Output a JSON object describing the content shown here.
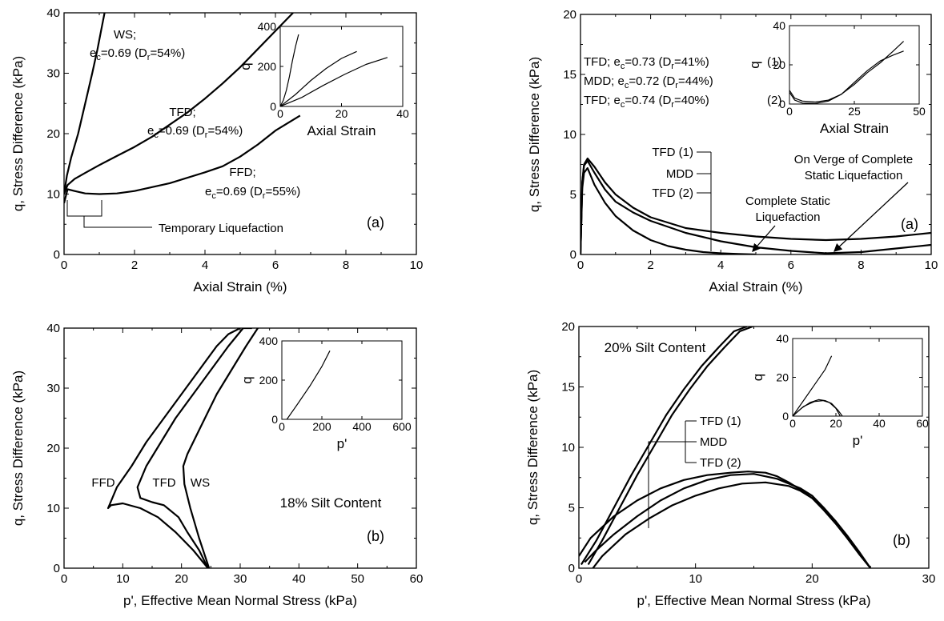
{
  "figure": {
    "background": "#ffffff",
    "ink": "#000000"
  },
  "chart_data": [
    {
      "id": "left-a",
      "type": "line",
      "panel_label": "(a)",
      "xlabel": "Axial Strain (%)",
      "ylabel": "q, Stress Difference (kPa)",
      "xlim": [
        0,
        10
      ],
      "ylim": [
        0,
        40
      ],
      "xticks": [
        "0",
        "2",
        "4",
        "6",
        "8",
        "10"
      ],
      "yticks": [
        "0",
        "10",
        "20",
        "30",
        "40"
      ],
      "series": [
        {
          "name": "WS",
          "x": [
            0,
            0.08,
            0.2,
            0.4,
            0.6,
            0.8,
            0.95,
            1.05,
            1.15
          ],
          "y": [
            10,
            13,
            16,
            20,
            25,
            30,
            34,
            37,
            40
          ]
        },
        {
          "name": "TFD",
          "x": [
            0,
            0.1,
            0.3,
            0.6,
            1,
            1.5,
            2,
            2.5,
            3,
            3.5,
            4,
            4.5,
            5,
            5.5,
            6,
            6.5
          ],
          "y": [
            10,
            11.5,
            12.5,
            13.5,
            14.8,
            16.3,
            17.8,
            19.5,
            21.5,
            23.5,
            25.8,
            28.3,
            31,
            34,
            37,
            40
          ]
        },
        {
          "name": "FFD",
          "x": [
            0,
            0.1,
            0.3,
            0.6,
            1,
            1.5,
            2,
            3,
            4,
            4.5,
            5,
            5.5,
            6,
            6.7
          ],
          "y": [
            8.5,
            10.8,
            10.5,
            10.1,
            10.0,
            10.1,
            10.5,
            11.8,
            13.6,
            14.6,
            16.2,
            18.2,
            20.5,
            23
          ]
        }
      ],
      "curve_labels": [
        {
          "line1": "WS;",
          "line2": "e",
          "sub": "c",
          "rest": "=0.69 (D",
          "sub2": "r",
          "tail": "=54%)"
        },
        {
          "line1": "TFD;",
          "line2": "e",
          "sub": "c",
          "rest": "=0.69 (D",
          "sub2": "r",
          "tail": "=54%)"
        },
        {
          "line1": "FFD;",
          "line2": "e",
          "sub": "c",
          "rest": "=0.69 (D",
          "sub2": "r",
          "tail": "=55%)"
        }
      ],
      "annotation": "Temporary Liquefaction",
      "inset": {
        "xlabel": "Axial Strain",
        "ylabel": "q",
        "xlim": [
          0,
          40
        ],
        "ylim": [
          0,
          400
        ],
        "xticks": [
          "0",
          "20",
          "40"
        ],
        "yticks": [
          "0",
          "200",
          "400"
        ],
        "series": [
          {
            "x": [
              0,
              1,
              2,
              3,
              4,
              5,
              6
            ],
            "y": [
              0,
              30,
              80,
              150,
              230,
              300,
              360
            ]
          },
          {
            "x": [
              0,
              5,
              10,
              15,
              20,
              25
            ],
            "y": [
              0,
              60,
              130,
              190,
              240,
              275
            ]
          },
          {
            "x": [
              0,
              7,
              14,
              21,
              28,
              35
            ],
            "y": [
              0,
              45,
              105,
              160,
              210,
              245
            ]
          }
        ]
      }
    },
    {
      "id": "right-a",
      "type": "line",
      "panel_label": "(a)",
      "xlabel": "Axial Strain (%)",
      "ylabel": "q, Stress Difference (kPa)",
      "xlim": [
        0,
        10
      ],
      "ylim": [
        0,
        20
      ],
      "xticks": [
        "0",
        "2",
        "4",
        "6",
        "8",
        "10"
      ],
      "yticks": [
        "0",
        "5",
        "10",
        "15",
        "20"
      ],
      "series": [
        {
          "name": "TFD (1)",
          "x": [
            0,
            0.05,
            0.1,
            0.2,
            0.4,
            0.7,
            1,
            1.5,
            2,
            3,
            4,
            5,
            6,
            7,
            8,
            9,
            10
          ],
          "y": [
            0,
            6,
            7.5,
            8,
            7.3,
            6,
            5,
            3.9,
            3.1,
            2.2,
            1.8,
            1.5,
            1.3,
            1.2,
            1.3,
            1.5,
            1.8
          ]
        },
        {
          "name": "MDD",
          "x": [
            0,
            0.05,
            0.1,
            0.2,
            0.4,
            0.7,
            1,
            1.5,
            2,
            3,
            4,
            5,
            6,
            7,
            8,
            9,
            10
          ],
          "y": [
            0,
            6,
            7.4,
            7.8,
            6.8,
            5.4,
            4.4,
            3.5,
            2.8,
            1.8,
            1.1,
            0.6,
            0.3,
            0.1,
            0.2,
            0.5,
            0.8
          ]
        },
        {
          "name": "TFD (2)",
          "x": [
            0,
            0.05,
            0.1,
            0.2,
            0.4,
            0.7,
            1,
            1.5,
            2,
            2.5,
            3,
            3.5,
            4,
            4.5,
            5
          ],
          "y": [
            0,
            5.5,
            6.8,
            7.2,
            5.8,
            4.3,
            3.2,
            2,
            1.2,
            0.7,
            0.4,
            0.2,
            0.1,
            0.05,
            0
          ]
        }
      ],
      "legend_items": [
        {
          "name": "TFD;",
          "e": "e",
          "sub": "c",
          "val": "=0.73 (D",
          "sub2": "r",
          "tail": "=41%)",
          "tag": "(1)"
        },
        {
          "name": "MDD;",
          "e": "e",
          "sub": "c",
          "val": "=0.72 (D",
          "sub2": "r",
          "tail": "=44%)",
          "tag": ""
        },
        {
          "name": "TFD;",
          "e": "e",
          "sub": "c",
          "val": "=0.74 (D",
          "sub2": "r",
          "tail": "=40%)",
          "tag": "(2)"
        }
      ],
      "bracket_labels": [
        "TFD (1)",
        "MDD",
        "TFD (2)"
      ],
      "annotations": [
        "On Verge of Complete",
        "Static Liquefaction",
        "Complete Static",
        "Liquefaction"
      ],
      "inset": {
        "xlabel": "Axial Strain",
        "ylabel": "q",
        "xlim": [
          0,
          50
        ],
        "ylim": [
          0,
          40
        ],
        "xticks": [
          "0",
          "25",
          "50"
        ],
        "yticks": [
          "0",
          "20",
          "40"
        ],
        "series": [
          {
            "x": [
              0,
              2,
              5,
              10,
              15,
              20,
              25,
              30,
              35,
              40,
              44
            ],
            "y": [
              7,
              3,
              1.5,
              1,
              2,
              5,
              10,
              16,
              21,
              27,
              32
            ]
          },
          {
            "x": [
              0,
              2,
              5,
              10,
              15,
              20,
              25,
              30,
              35,
              40,
              44
            ],
            "y": [
              6,
              2,
              0.5,
              0.3,
              1.5,
              5,
              11,
              17,
              22,
              25,
              27
            ]
          }
        ]
      }
    },
    {
      "id": "left-b",
      "type": "line",
      "panel_label": "(b)",
      "xlabel": "p', Effective Mean Normal Stress (kPa)",
      "ylabel": "q, Stress Difference (kPa)",
      "xlim": [
        0,
        60
      ],
      "ylim": [
        0,
        40
      ],
      "xticks": [
        "0",
        "10",
        "20",
        "30",
        "40",
        "50",
        "60"
      ],
      "yticks": [
        "0",
        "10",
        "20",
        "30",
        "40"
      ],
      "series": [
        {
          "name": "FFD",
          "x": [
            24.5,
            22,
            19,
            16,
            13,
            10,
            8,
            7.5,
            9,
            11.5,
            14,
            17,
            20,
            23,
            26,
            28,
            30
          ],
          "y": [
            0,
            3,
            6,
            8.5,
            10,
            10.8,
            10.5,
            10,
            13.5,
            17,
            21,
            25,
            29,
            33,
            37,
            39,
            40
          ]
        },
        {
          "name": "TFD",
          "x": [
            24.5,
            23,
            21,
            19.5,
            17,
            15,
            13,
            12.5,
            14,
            16.5,
            19,
            22,
            25,
            28,
            30.5,
            32
          ],
          "y": [
            0,
            3,
            6,
            8.5,
            10.5,
            11,
            11.7,
            13.5,
            17,
            21,
            25,
            29,
            33,
            37,
            40,
            40
          ]
        },
        {
          "name": "WS",
          "x": [
            24.7,
            23,
            21.5,
            20.5,
            20.3,
            21,
            22,
            24,
            26,
            28.5,
            31,
            33
          ],
          "y": [
            0,
            5,
            10,
            14,
            17,
            19,
            21,
            25,
            29,
            33,
            37,
            40
          ]
        }
      ],
      "curve_labels": [
        "FFD",
        "TFD",
        "WS"
      ],
      "annotation": "18% Silt Content",
      "inset": {
        "xlabel": "p'",
        "ylabel": "q",
        "xlim": [
          0,
          600
        ],
        "ylim": [
          0,
          400
        ],
        "xticks": [
          "0",
          "200",
          "400",
          "600"
        ],
        "yticks": [
          "0",
          "200",
          "400"
        ],
        "series": [
          {
            "x": [
              25,
              80,
              140,
              200,
              240
            ],
            "y": [
              0,
              80,
              170,
              270,
              350
            ]
          }
        ]
      }
    },
    {
      "id": "right-b",
      "type": "line",
      "panel_label": "(b)",
      "xlabel": "p', Effective Mean Normal Stress (kPa)",
      "ylabel": "q, Stress Difference (kPa)",
      "xlim": [
        0,
        30
      ],
      "ylim": [
        0,
        20
      ],
      "xticks": [
        "0",
        "10",
        "20",
        "30"
      ],
      "yticks": [
        "0",
        "5",
        "10",
        "15",
        "20"
      ],
      "series": [
        {
          "name": "TFD (1)",
          "x": [
            0,
            1,
            3,
            5,
            7,
            9,
            11,
            13,
            14.5,
            16,
            17,
            18,
            19,
            20,
            21,
            22,
            23,
            24,
            25
          ],
          "y": [
            1,
            2.5,
            4.3,
            5.6,
            6.6,
            7.3,
            7.7,
            7.9,
            8,
            7.9,
            7.6,
            7.1,
            6.5,
            5.8,
            4.8,
            3.7,
            2.5,
            1.2,
            0
          ]
        },
        {
          "name": "MDD",
          "x": [
            0.5,
            1.5,
            3,
            5,
            7,
            9,
            11,
            13,
            15,
            17,
            19,
            20,
            21,
            22,
            23,
            24,
            25
          ],
          "y": [
            0.5,
            1.5,
            2.8,
            4.3,
            5.6,
            6.6,
            7.3,
            7.7,
            7.8,
            7.4,
            6.6,
            6,
            5,
            3.9,
            2.6,
            1.3,
            0
          ]
        },
        {
          "name": "TFD (2)",
          "x": [
            1.2,
            2,
            4,
            6,
            8,
            10,
            12,
            14,
            16,
            18,
            19,
            20,
            21,
            22,
            23,
            24,
            25
          ],
          "y": [
            0,
            1,
            2.8,
            4.1,
            5.2,
            6,
            6.6,
            7,
            7.1,
            6.8,
            6.4,
            5.8,
            4.9,
            3.9,
            2.7,
            1.4,
            0
          ]
        },
        {
          "name": "",
          "x": [
            0.2,
            1.5,
            3,
            4.5,
            6,
            7.5,
            9,
            10.5,
            12,
            13.3,
            14.4
          ],
          "y": [
            0.3,
            2.3,
            5,
            7.7,
            10.2,
            12.7,
            14.8,
            16.7,
            18.3,
            19.6,
            20
          ]
        },
        {
          "name": "",
          "x": [
            0.8,
            2,
            3.5,
            5,
            6.5,
            8,
            9.5,
            11,
            12.5,
            13.8,
            14.9
          ],
          "y": [
            0.3,
            2.3,
            5,
            7.7,
            10.2,
            12.7,
            14.8,
            16.7,
            18.3,
            19.6,
            20
          ]
        }
      ],
      "bracket_labels": [
        "TFD (1)",
        "MDD",
        "TFD (2)"
      ],
      "annotation": "20% Silt Content",
      "inset": {
        "xlabel": "p'",
        "ylabel": "q",
        "xlim": [
          0,
          60
        ],
        "ylim": [
          0,
          40
        ],
        "xticks": [
          "0",
          "20",
          "40",
          "60"
        ],
        "yticks": [
          "0",
          "20",
          "40"
        ],
        "series": [
          {
            "x": [
              0,
              5,
              10,
              15,
              18
            ],
            "y": [
              0,
              8,
              16,
              24,
              31
            ]
          },
          {
            "x": [
              0,
              4,
              8,
              12,
              15,
              18,
              21,
              23
            ],
            "y": [
              0,
              4,
              7,
              8.5,
              8,
              6.5,
              3,
              0
            ]
          },
          {
            "x": [
              0,
              5,
              10,
              14,
              17,
              20,
              22
            ],
            "y": [
              0,
              5,
              7.5,
              8,
              7,
              4,
              0
            ]
          }
        ]
      }
    }
  ]
}
